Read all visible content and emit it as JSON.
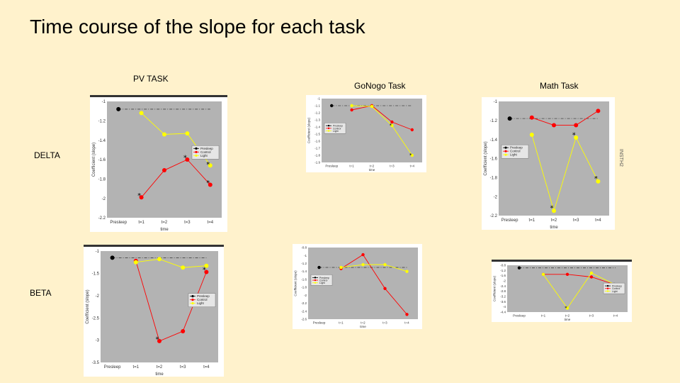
{
  "slide": {
    "title": "Time course of the slope for each task",
    "columns": [
      "PV TASK",
      "GoNogo Task",
      "Math Task"
    ],
    "rows": [
      "DELTA",
      "BETA"
    ],
    "side_note": "INSTH2"
  },
  "colors": {
    "background": "#fff2cc",
    "plot_area": "#b3b3b3",
    "presleep": "#000000",
    "control": "#ff0000",
    "light": "#ffff00",
    "reference_line": "#444444"
  },
  "chart_data": [
    {
      "id": "pv-delta",
      "type": "line",
      "task": "PV TASK",
      "band": "DELTA",
      "x": [
        "Presleep",
        "t=1",
        "t=2",
        "t=3",
        "t=4"
      ],
      "xlabel": "time",
      "ylabel": "Coefficient (slope)",
      "ylim": [
        -2.2,
        -1
      ],
      "yticks": [
        -2.2,
        -2,
        -1.8,
        -1.6,
        -1.4,
        -1.2,
        -1
      ],
      "grid": false,
      "legend_position": "right",
      "series": [
        {
          "name": "Presleep",
          "color": "#000000",
          "values": [
            -1.08,
            null,
            null,
            null,
            null
          ]
        },
        {
          "name": "Control",
          "color": "#ff0000",
          "values": [
            null,
            -1.99,
            -1.71,
            -1.6,
            -1.86
          ]
        },
        {
          "name": "Light",
          "color": "#ffff00",
          "values": [
            null,
            -1.12,
            -1.34,
            -1.33,
            -1.66
          ]
        }
      ],
      "stars": [
        [
          1,
          -1.98
        ],
        [
          3,
          -1.59
        ],
        [
          4,
          -1.66
        ],
        [
          4,
          -1.85
        ]
      ],
      "reference": -1.08
    },
    {
      "id": "gonogo-delta",
      "type": "line",
      "task": "GoNogo Task",
      "band": "DELTA",
      "x": [
        "Presleep",
        "t=1",
        "t=2",
        "t=3",
        "t=4"
      ],
      "xlabel": "time",
      "ylabel": "Coefficient (slope)",
      "ylim": [
        -1.9,
        -1
      ],
      "yticks": [
        -1.9,
        -1.8,
        -1.7,
        -1.6,
        -1.5,
        -1.4,
        -1.3,
        -1.2,
        -1.1,
        -1
      ],
      "grid": false,
      "legend_position": "left",
      "series": [
        {
          "name": "Presleep",
          "color": "#000000",
          "values": [
            -1.1,
            null,
            null,
            null,
            null
          ]
        },
        {
          "name": "Control",
          "color": "#ff0000",
          "values": [
            null,
            -1.16,
            -1.1,
            -1.33,
            -1.44
          ]
        },
        {
          "name": "Light",
          "color": "#ffff00",
          "values": [
            null,
            -1.1,
            -1.11,
            -1.38,
            -1.8
          ]
        }
      ],
      "stars": [
        [
          3,
          -1.38
        ],
        [
          4,
          -1.8
        ]
      ],
      "reference": -1.1
    },
    {
      "id": "math-delta",
      "type": "line",
      "task": "Math Task",
      "band": "DELTA",
      "x": [
        "Presleep",
        "t=1",
        "t=2",
        "t=3",
        "t=4"
      ],
      "xlabel": "time",
      "ylabel": "Coefficient (slope)",
      "ylim": [
        -2.2,
        -1
      ],
      "yticks": [
        -2.2,
        -2,
        -1.8,
        -1.6,
        -1.4,
        -1.2,
        -1
      ],
      "grid": false,
      "legend_position": "left",
      "series": [
        {
          "name": "Presleep",
          "color": "#000000",
          "values": [
            -1.18,
            null,
            null,
            null,
            null
          ]
        },
        {
          "name": "Control",
          "color": "#ff0000",
          "values": [
            null,
            -1.17,
            -1.25,
            -1.25,
            -1.1
          ]
        },
        {
          "name": "Light",
          "color": "#ffff00",
          "values": [
            null,
            -1.35,
            -2.15,
            -1.38,
            -1.84
          ]
        }
      ],
      "stars": [
        [
          2,
          -2.13
        ],
        [
          3,
          -1.36
        ],
        [
          4,
          -1.82
        ]
      ],
      "reference": -1.18
    },
    {
      "id": "pv-beta",
      "type": "line",
      "task": "PV TASK",
      "band": "BETA",
      "x": [
        "Presleep",
        "t=1",
        "t=2",
        "t=3",
        "t=4"
      ],
      "xlabel": "time",
      "ylabel": "Coefficient (slope)",
      "ylim": [
        -3.5,
        -1
      ],
      "yticks": [
        -3.5,
        -3,
        -2.5,
        -2,
        -1.5,
        -1
      ],
      "grid": false,
      "legend_position": "right",
      "series": [
        {
          "name": "Presleep",
          "color": "#000000",
          "values": [
            -1.15,
            null,
            null,
            null,
            null
          ]
        },
        {
          "name": "Control",
          "color": "#ff0000",
          "values": [
            null,
            -1.22,
            -3.02,
            -2.8,
            -1.47
          ]
        },
        {
          "name": "Light",
          "color": "#ffff00",
          "values": [
            null,
            -1.25,
            -1.18,
            -1.37,
            -1.33
          ]
        }
      ],
      "stars": [
        [
          2,
          -3
        ],
        [
          4,
          -1.44
        ]
      ],
      "reference": -1.15
    },
    {
      "id": "gonogo-beta",
      "type": "line",
      "task": "GoNogo Task",
      "band": "BETA",
      "x": [
        "Presleep",
        "t=1",
        "t=2",
        "t=3",
        "t=4"
      ],
      "xlabel": "time",
      "ylabel": "Coefficient (slope)",
      "ylim": [
        -2.6,
        -0.8
      ],
      "yticks": [
        -2.6,
        -2.4,
        -2.2,
        -2,
        -1.8,
        -1.6,
        -1.4,
        -1.2,
        -1,
        -0.8
      ],
      "grid": false,
      "legend_position": "left",
      "series": [
        {
          "name": "Presleep",
          "color": "#000000",
          "values": [
            -1.3,
            null,
            null,
            null,
            null
          ]
        },
        {
          "name": "Control",
          "color": "#ff0000",
          "values": [
            null,
            -1.33,
            -0.98,
            -1.83,
            -2.48
          ]
        },
        {
          "name": "Light",
          "color": "#ffff00",
          "values": [
            null,
            -1.3,
            -1.23,
            -1.23,
            -1.4
          ]
        }
      ],
      "stars": [],
      "reference": -1.3
    },
    {
      "id": "math-beta",
      "type": "line",
      "task": "Math Task",
      "band": "BETA",
      "x": [
        "Presleep",
        "t=1",
        "t=2",
        "t=3",
        "t=4"
      ],
      "xlabel": "time",
      "ylabel": "Coefficient (slope)",
      "ylim": [
        -4.4,
        -0.8
      ],
      "yticks": [
        -4.4,
        -4,
        -3.6,
        -3.2,
        -2.8,
        -2.4,
        -2,
        -1.6,
        -1.2,
        -0.8
      ],
      "grid": false,
      "legend_position": "right",
      "series": [
        {
          "name": "Presleep",
          "color": "#000000",
          "values": [
            -1,
            null,
            null,
            null,
            null
          ]
        },
        {
          "name": "Control",
          "color": "#ff0000",
          "values": [
            null,
            -1.5,
            -1.5,
            -1.7,
            -2.3
          ]
        },
        {
          "name": "Light",
          "color": "#ffff00",
          "values": [
            null,
            -1.5,
            -4.1,
            -1.4,
            -2.3
          ]
        }
      ],
      "stars": [
        [
          2,
          -4.1
        ],
        [
          4,
          -2.3
        ]
      ],
      "reference": -1
    }
  ]
}
